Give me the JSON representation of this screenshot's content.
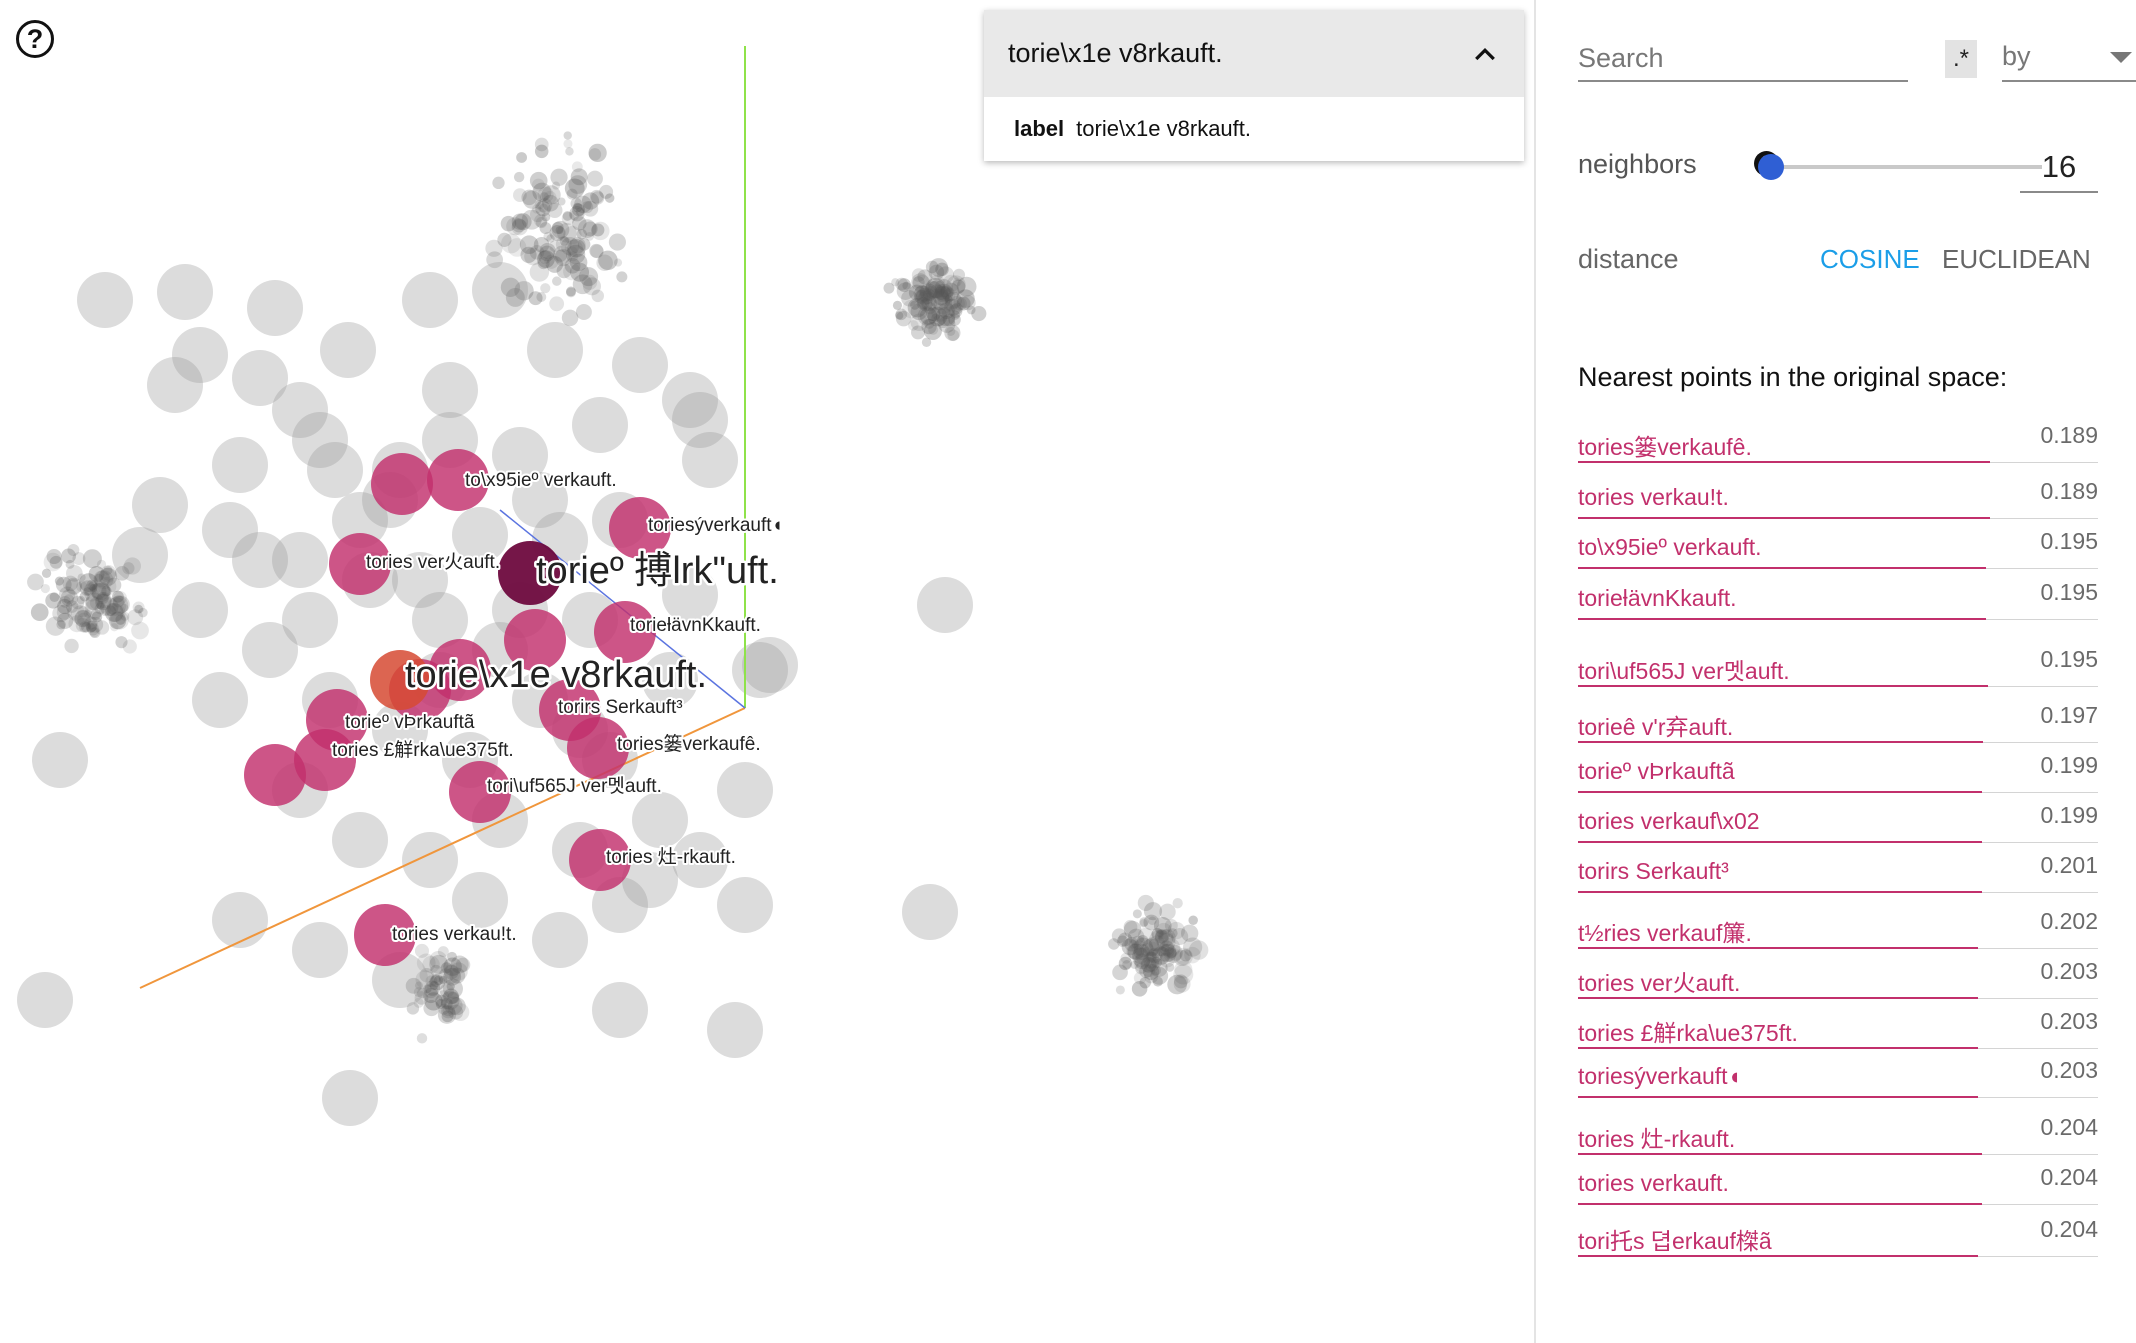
{
  "help_icon": "question-circle-icon",
  "card": {
    "title": "torie\\x1e v8rkauft.",
    "label_key": "label",
    "label_value": "torie\\x1e v8rkauft.",
    "collapse_icon": "chevron-up-icon"
  },
  "search": {
    "placeholder": "Search",
    "regex_label": ".*",
    "by_label": "by",
    "by_icon": "caret-down-icon"
  },
  "neighbors": {
    "label": "neighbors",
    "help_icon": "question-filled-icon",
    "value": "16",
    "slider_fraction": 0.0
  },
  "distance": {
    "label": "distance",
    "options": [
      "COSINE",
      "EUCLIDEAN"
    ],
    "selected": "COSINE"
  },
  "nearest": {
    "title": "Nearest points in the original space:",
    "items": [
      {
        "label": "tories篓verkaufê.",
        "value": "0.189"
      },
      {
        "label": "tories verkau!t.",
        "value": "0.189"
      },
      {
        "label": "to\\x95ieº verkauft.",
        "value": "0.195"
      },
      {
        "label": "torieƚävnKkauft.",
        "value": "0.195"
      },
      {
        "label": "tori\\uf565J ver멧auft.",
        "value": "0.195"
      },
      {
        "label": "torieê v'r弃auft.",
        "value": "0.197"
      },
      {
        "label": "torieº vÞrkauftã",
        "value": "0.199"
      },
      {
        "label": "tories verkauf\\x02",
        "value": "0.199"
      },
      {
        "label": "torirs Serkauft³",
        "value": "0.201"
      },
      {
        "label": "t½ries verkauf簾.",
        "value": "0.202"
      },
      {
        "label": "tories ver火auft.",
        "value": "0.203"
      },
      {
        "label": "tories £觧rka\\ue375ft.",
        "value": "0.203"
      },
      {
        "label": "toriesýverkauft◖",
        "value": "0.203"
      },
      {
        "label": "tories 灶-rkauft.",
        "value": "0.204"
      },
      {
        "label": "tories verkauft.",
        "value": "0.204"
      },
      {
        "label": "tori托s 뎝erkauf榤ã",
        "value": "0.204"
      }
    ]
  },
  "scatter": {
    "selected_label": "torie\\x1e v8rkauft.",
    "highlight_label": "torieº 搏lrk\"uft.",
    "point_labels": [
      "to\\x95ieº verkauft.",
      "toriesýverkauft◖",
      "tories ver火auft.",
      "torieƚävnKkauft.",
      "torirs Serkauft³",
      "torieº vÞrkauftã",
      "tories £觧rka\\ue375ft.",
      "tories篓verkaufê.",
      "tori\\uf565J ver멧auft.",
      "tories 灶-rkauft.",
      "tories verkau!t."
    ],
    "colors": {
      "neighbor": "#c2306c",
      "highlight": "#6e0a3e",
      "selected": "#d64a32",
      "cloud": "#9c9c9c"
    }
  }
}
